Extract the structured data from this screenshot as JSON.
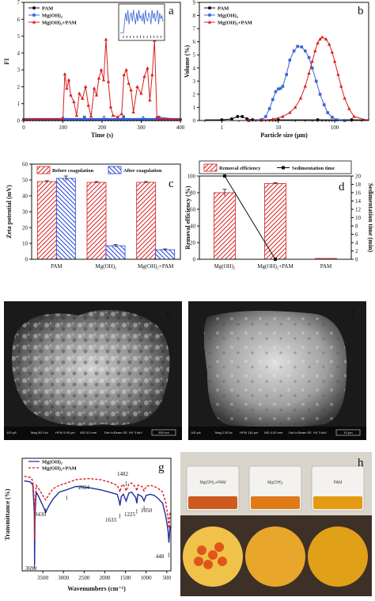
{
  "chart_data": [
    {
      "panel": "a",
      "type": "line",
      "xlabel": "Time (s)",
      "ylabel": "FI",
      "xlim": [
        0,
        400
      ],
      "ylim": [
        0,
        7
      ],
      "xticks": [
        "0",
        "100",
        "200",
        "300",
        "400"
      ],
      "yticks": [
        "0",
        "1",
        "2",
        "3",
        "4",
        "5",
        "6",
        "7"
      ],
      "legend": [
        "PAM",
        "Mg(OH)₂",
        "Mg(OH)₂+PAM"
      ],
      "series": [
        {
          "name": "PAM",
          "color": "#111111",
          "x": [
            0,
            400
          ],
          "y": [
            0.05,
            0.05
          ]
        },
        {
          "name": "Mg(OH)₂",
          "color": "#3a63d6",
          "x": [
            0,
            95,
            100,
            105,
            150,
            155,
            160,
            200,
            205,
            210,
            250,
            255,
            260,
            300,
            305,
            310,
            340,
            345,
            400
          ],
          "y": [
            0.06,
            0.06,
            0.25,
            0.06,
            0.06,
            0.2,
            0.06,
            0.06,
            0.28,
            0.06,
            0.06,
            0.22,
            0.06,
            0.06,
            0.25,
            0.06,
            0.06,
            0.2,
            0.06
          ]
        },
        {
          "name": "Mg(OH)₂+PAM",
          "color": "#d81f1f",
          "x": [
            0,
            100,
            105,
            110,
            115,
            120,
            128,
            135,
            142,
            150,
            158,
            165,
            172,
            180,
            186,
            192,
            198,
            204,
            210,
            216,
            222,
            228,
            240,
            250,
            256,
            262,
            268,
            274,
            280,
            290,
            300,
            308,
            316,
            322,
            328,
            334,
            340,
            360,
            400
          ],
          "y": [
            0.05,
            0.05,
            2.75,
            1.9,
            2.4,
            1.5,
            1.1,
            0.3,
            1.6,
            1.3,
            2.0,
            0.9,
            0.25,
            1.9,
            1.5,
            2.5,
            3.0,
            2.4,
            4.8,
            2.3,
            0.8,
            0.3,
            0.2,
            0.4,
            2.7,
            3.0,
            2.2,
            1.8,
            0.5,
            2.0,
            1.6,
            2.6,
            3.1,
            1.2,
            2.7,
            4.75,
            0.2,
            0.05,
            0.05
          ]
        }
      ],
      "inset": {
        "x": [
          0,
          1,
          2,
          3,
          4,
          5,
          6,
          7,
          8,
          9,
          10,
          11,
          12,
          13,
          14,
          15,
          16,
          17,
          18,
          19,
          20,
          21,
          22,
          23,
          24,
          25,
          26,
          27,
          28,
          29,
          30,
          31,
          32,
          33,
          34,
          35,
          36,
          37,
          38,
          39
        ],
        "y": [
          0.1,
          0.1,
          0.1,
          0.1,
          0.5,
          0.8,
          0.5,
          0.9,
          0.4,
          0.7,
          0.8,
          0.5,
          0.9,
          0.6,
          0.4,
          0.8,
          0.5,
          0.9,
          0.6,
          0.7,
          0.5,
          0.8,
          0.4,
          0.9,
          0.6,
          0.5,
          0.8,
          0.7,
          0.4,
          0.9,
          0.6,
          0.8,
          0.5,
          0.7,
          0.9,
          0.4,
          0.8,
          0.6,
          0.7,
          0.5
        ]
      }
    },
    {
      "panel": "b",
      "type": "line",
      "xlabel": "Particle size (μm)",
      "ylabel": "Volume (%)",
      "xscale": "log",
      "xlim": [
        0.4,
        400
      ],
      "ylim": [
        0,
        9
      ],
      "xticks": [
        "1",
        "10",
        "100"
      ],
      "yticks": [
        "0",
        "1",
        "2",
        "3",
        "4",
        "5",
        "6",
        "7",
        "8",
        "9"
      ],
      "legend": [
        "PAM",
        "Mg(OH)₂",
        "Mg(OH)₂+PAM"
      ],
      "series": [
        {
          "name": "PAM",
          "color": "#111111",
          "x": [
            0.5,
            1,
            1.5,
            1.9,
            2.3,
            2.8,
            3.5,
            5,
            10,
            50,
            200,
            400
          ],
          "y": [
            0.05,
            0.05,
            0.12,
            0.3,
            0.3,
            0.12,
            0.05,
            0.05,
            0.05,
            0.05,
            0.05,
            0.05
          ]
        },
        {
          "name": "Mg(OH)₂",
          "color": "#3a63d6",
          "x": [
            0.5,
            3,
            5,
            6,
            7,
            8,
            9,
            10,
            11,
            12,
            14,
            16,
            19,
            22,
            26,
            30,
            35,
            40,
            47,
            55,
            65,
            75,
            90,
            110,
            150,
            400
          ],
          "y": [
            0,
            0,
            0.05,
            0.3,
            0.9,
            1.6,
            2.2,
            2.4,
            2.45,
            2.6,
            3.5,
            4.6,
            5.3,
            5.65,
            5.6,
            5.3,
            4.8,
            4.0,
            3.0,
            2.0,
            1.2,
            0.6,
            0.25,
            0.05,
            0,
            0
          ]
        },
        {
          "name": "Mg(OH)₂+PAM",
          "color": "#d81f1f",
          "x": [
            0.5,
            3,
            5,
            8,
            12,
            16,
            20,
            25,
            30,
            35,
            40,
            45,
            50,
            55,
            60,
            70,
            80,
            90,
            100,
            115,
            130,
            150,
            180,
            220,
            400
          ],
          "y": [
            0,
            0,
            0.02,
            0.1,
            0.3,
            0.6,
            1.0,
            1.7,
            2.6,
            3.6,
            4.5,
            5.3,
            5.9,
            6.2,
            6.35,
            6.2,
            5.8,
            5.2,
            4.5,
            3.5,
            2.6,
            1.7,
            0.9,
            0.3,
            0
          ]
        }
      ]
    },
    {
      "panel": "c",
      "type": "bar",
      "ylabel": "Zeta potential (mV)",
      "ylim": [
        0,
        60
      ],
      "yticks": [
        "0",
        "10",
        "20",
        "30",
        "40",
        "50",
        "60"
      ],
      "categories": [
        "PAM",
        "Mg(OH)₂",
        "Mg(OH)₂+PAM"
      ],
      "series": [
        {
          "name": "Before coagulation",
          "color": "#d81f1f",
          "values": [
            49,
            48.5,
            48.5
          ],
          "err": [
            0.5,
            0.5,
            0.5
          ]
        },
        {
          "name": "After coagulation",
          "color": "#1f3fd8",
          "values": [
            51,
            8.5,
            6
          ],
          "err": [
            1.5,
            0.8,
            0.5
          ]
        }
      ]
    },
    {
      "panel": "d",
      "type": "bar",
      "ylabel": "Removal efficiency (%)",
      "y2label": "Sedimentation time (min)",
      "ylim": [
        0,
        100
      ],
      "y2lim": [
        0,
        20
      ],
      "yticks": [
        "0",
        "20",
        "40",
        "60",
        "80",
        "100"
      ],
      "y2ticks": [
        "0",
        "2",
        "4",
        "6",
        "8",
        "10",
        "12",
        "14",
        "16",
        "18",
        "20"
      ],
      "categories": [
        "Mg(OH)₂",
        "Mg(OH)₂+PAM",
        "PAM"
      ],
      "series": [
        {
          "name": "Removal efficiency",
          "color": "#d81f1f",
          "values": [
            80,
            91,
            1
          ],
          "err": [
            4,
            1,
            0
          ]
        },
        {
          "name": "Sedimentation time",
          "color": "#111111",
          "values": [
            20,
            0,
            null
          ]
        }
      ]
    },
    {
      "panel": "g",
      "type": "line",
      "xlabel": "Wavenumbers (cm⁻¹)",
      "ylabel": "Transmittance (%)",
      "xlim": [
        4000,
        400
      ],
      "xticks": [
        "3500",
        "3000",
        "2500",
        "2000",
        "1500",
        "1000",
        "500"
      ],
      "legend": [
        "Mg(OH)₂",
        "Mg(OH)₂+PAM"
      ],
      "annotations": [
        "1482",
        "2924",
        "3430",
        "1633",
        "1225",
        "1050",
        "448",
        "3699"
      ],
      "series": [
        {
          "name": "Mg(OH)₂",
          "color": "#1f2f9a",
          "x": [
            3950,
            3800,
            3740,
            3705,
            3699,
            3690,
            3660,
            3600,
            3500,
            3430,
            3350,
            3250,
            3100,
            2924,
            2700,
            2400,
            2100,
            1900,
            1700,
            1650,
            1633,
            1600,
            1550,
            1482,
            1420,
            1350,
            1250,
            1225,
            1200,
            1100,
            1050,
            1000,
            900,
            800,
            700,
            600,
            520,
            470,
            448,
            420
          ],
          "y": [
            80,
            79,
            76,
            50,
            5,
            48,
            70,
            66,
            58,
            52,
            58,
            64,
            70,
            72,
            75,
            74,
            72,
            70,
            68,
            62,
            58,
            66,
            68,
            62,
            69,
            70,
            65,
            60,
            68,
            66,
            62,
            67,
            68,
            67,
            64,
            60,
            48,
            36,
            25,
            40
          ]
        },
        {
          "name": "Mg(OH)₂+PAM",
          "color": "#d81f1f",
          "x": [
            3950,
            3800,
            3740,
            3705,
            3699,
            3690,
            3660,
            3600,
            3500,
            3430,
            3350,
            3250,
            3100,
            2924,
            2700,
            2400,
            2100,
            1900,
            1700,
            1650,
            1633,
            1600,
            1550,
            1482,
            1420,
            1350,
            1250,
            1225,
            1200,
            1100,
            1050,
            1000,
            900,
            800,
            700,
            600,
            520,
            470,
            448,
            420
          ],
          "y": [
            84,
            83,
            80,
            60,
            28,
            58,
            76,
            73,
            67,
            63,
            68,
            73,
            76,
            78,
            81,
            82,
            81,
            79,
            76,
            72,
            70,
            75,
            77,
            71,
            77,
            78,
            74,
            71,
            76,
            75,
            71,
            75,
            76,
            75,
            73,
            70,
            60,
            48,
            38,
            52
          ]
        }
      ]
    }
  ],
  "images": {
    "sem_e": {
      "panel": "e",
      "scale": "500 nm",
      "info": [
        "100 μA",
        "Mag 50.0 kx",
        "HFW 5.90 μm",
        "WD 5.0 mm",
        "Det In-Beam SE",
        "HV 3 keV"
      ]
    },
    "sem_f": {
      "panel": "f",
      "scale": "10 μm",
      "info": [
        "100 μA",
        "Mag 2.50 kx",
        "HFW 118 μm",
        "WD 4.50 mm",
        "Det In-Beam SE",
        "HV 3 keV"
      ]
    },
    "photo_h": {
      "panel": "h",
      "beakers": [
        "Mg(OH)₂+PAM",
        "Mg(OH)₂",
        "PAM"
      ]
    }
  }
}
